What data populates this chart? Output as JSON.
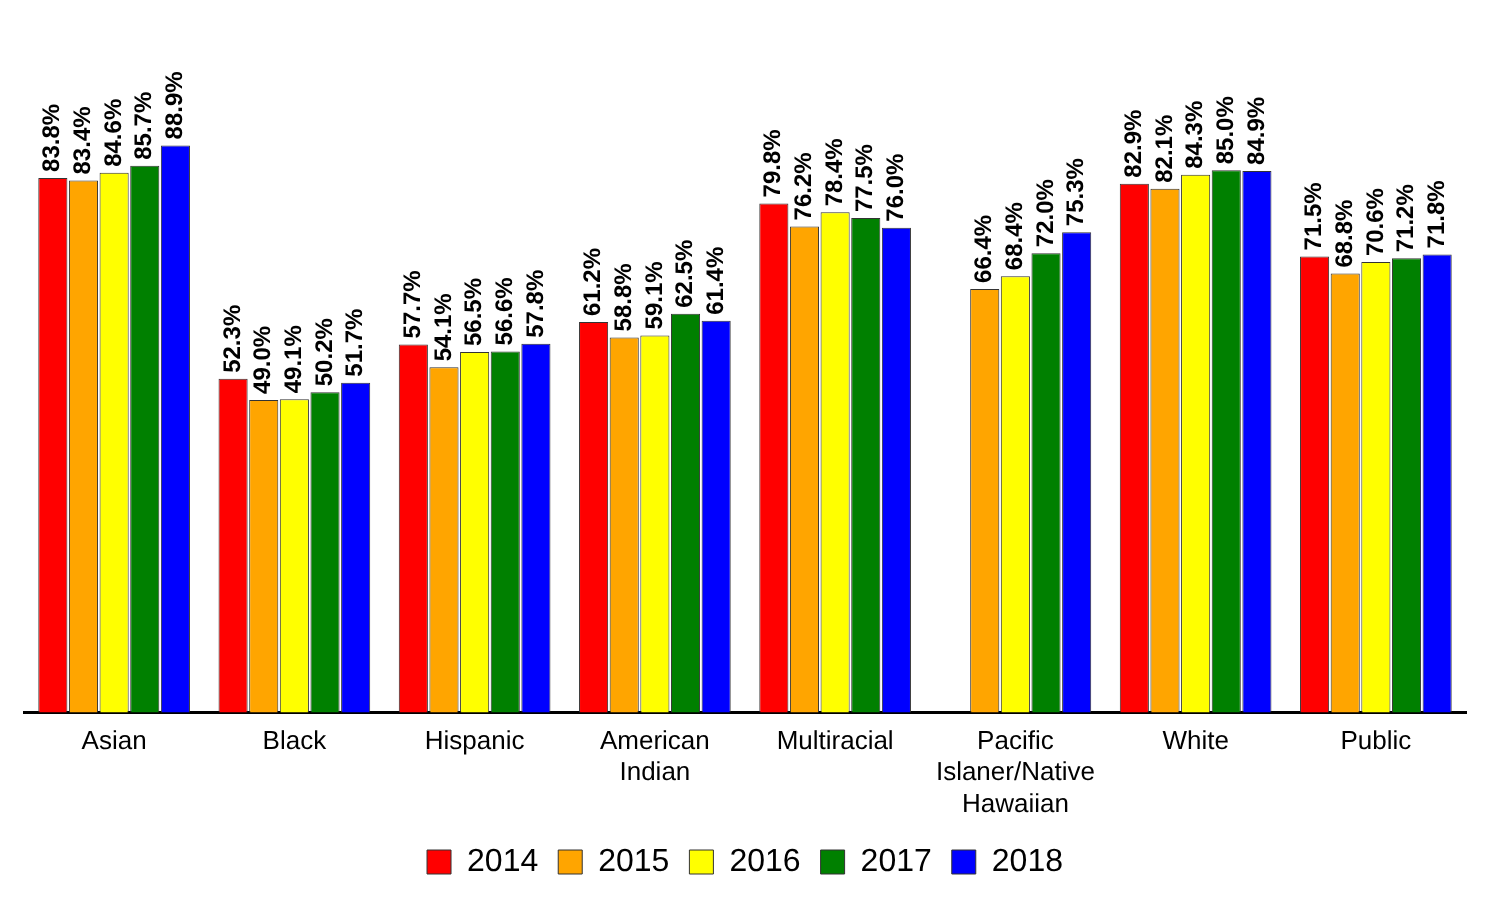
{
  "chart_data": {
    "type": "bar",
    "categories": [
      "Asian",
      "Black",
      "Hispanic",
      "American Indian",
      "Multiracial",
      "Pacific Islaner/Native Hawaiian",
      "White",
      "Public"
    ],
    "series": [
      {
        "name": "2014",
        "color": "#ff0000",
        "values": [
          83.8,
          52.3,
          57.7,
          61.2,
          79.8,
          null,
          82.9,
          71.5
        ],
        "value_labels": [
          "83.8%",
          "52.3%",
          "57.7%",
          "61.2%",
          "79.8%",
          null,
          "82.9%",
          "71.5%"
        ]
      },
      {
        "name": "2015",
        "color": "#ffa500",
        "values": [
          83.4,
          49.0,
          54.1,
          58.8,
          76.2,
          66.4,
          82.1,
          68.8
        ],
        "value_labels": [
          "83.4%",
          "49.0%",
          "54.1%",
          "58.8%",
          "76.2%",
          "66.4%",
          "82.1%",
          "68.8%"
        ]
      },
      {
        "name": "2016",
        "color": "#ffff00",
        "values": [
          84.6,
          49.1,
          56.5,
          59.1,
          78.4,
          68.4,
          84.3,
          70.6
        ],
        "value_labels": [
          "84.6%",
          "49.1%",
          "56.5%",
          "59.1%",
          "78.4%",
          "68.4%",
          "84.3%",
          "70.6%"
        ]
      },
      {
        "name": "2017",
        "color": "#008000",
        "values": [
          85.7,
          50.2,
          56.6,
          62.5,
          77.5,
          72.0,
          85.0,
          71.2
        ],
        "value_labels": [
          "85.7%",
          "50.2%",
          "56.6%",
          "62.5%",
          "77.5%",
          "72.0%",
          "85.0%",
          "71.2%"
        ]
      },
      {
        "name": "2018",
        "color": "#0000ff",
        "values": [
          88.9,
          51.7,
          57.8,
          61.4,
          76.0,
          75.3,
          84.9,
          71.8
        ],
        "value_labels": [
          "88.9%",
          "51.7%",
          "57.8%",
          "61.4%",
          "76.0%",
          "75.3%",
          "84.9%",
          "71.8%"
        ]
      }
    ],
    "grid": false,
    "legend": "bottom"
  }
}
